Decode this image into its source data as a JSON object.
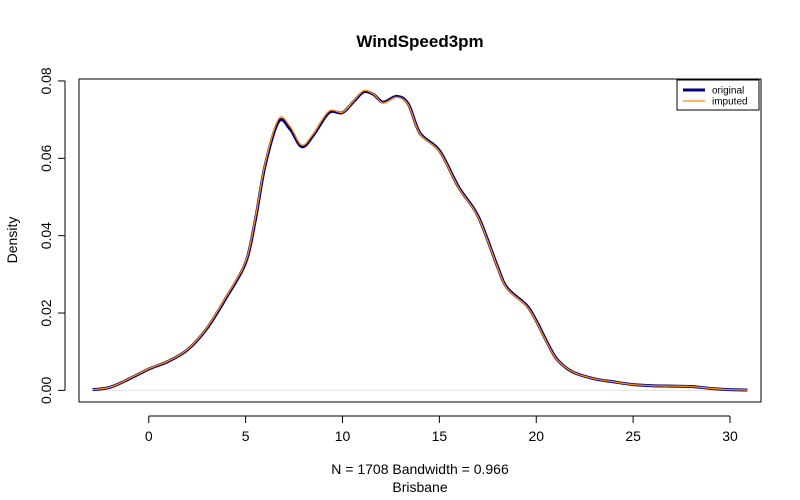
{
  "chart_data": {
    "type": "line",
    "title": "WindSpeed3pm",
    "xlabel": "N = 1708   Bandwidth = 0.966",
    "sublabel": "Brisbane",
    "ylabel": "Density",
    "xlim": [
      -3.6,
      31.6
    ],
    "ylim": [
      -0.003,
      0.0805
    ],
    "x_ticks": [
      0,
      5,
      10,
      15,
      20,
      25,
      30
    ],
    "x_tick_labels": [
      "0",
      "5",
      "10",
      "15",
      "20",
      "25",
      "30"
    ],
    "y_ticks": [
      0.0,
      0.02,
      0.04,
      0.06,
      0.08
    ],
    "y_tick_labels": [
      "0.00",
      "0.02",
      "0.04",
      "0.06",
      "0.08"
    ],
    "legend_position": "top-right",
    "grid": false,
    "series": [
      {
        "name": "original",
        "color": "#000080",
        "x": [
          -2.9,
          -2,
          -1,
          0,
          1,
          2,
          3,
          4,
          5,
          5.5,
          6,
          6.7,
          7.3,
          7.9,
          8.5,
          9.3,
          10,
          10.6,
          11.1,
          11.6,
          12.1,
          12.8,
          13.4,
          14,
          15,
          16,
          17,
          18,
          18.5,
          19.5,
          20,
          20.5,
          21,
          21.5,
          22,
          23,
          24,
          25,
          26,
          27,
          28,
          29,
          30,
          30.9
        ],
        "y": [
          0.0002,
          0.0008,
          0.003,
          0.0055,
          0.0075,
          0.0105,
          0.016,
          0.024,
          0.033,
          0.044,
          0.058,
          0.0695,
          0.0675,
          0.063,
          0.066,
          0.0718,
          0.0718,
          0.0748,
          0.0772,
          0.0765,
          0.0745,
          0.076,
          0.074,
          0.0665,
          0.062,
          0.0525,
          0.045,
          0.032,
          0.0265,
          0.022,
          0.018,
          0.013,
          0.0085,
          0.006,
          0.0045,
          0.003,
          0.0022,
          0.0015,
          0.0012,
          0.0011,
          0.001,
          0.0005,
          0.0002,
          0.0001
        ]
      },
      {
        "name": "imputed",
        "color": "#ff8c00",
        "x": [
          -2.9,
          -2,
          -1,
          0,
          1,
          2,
          3,
          4,
          5,
          5.5,
          6,
          6.7,
          7.3,
          7.9,
          8.5,
          9.3,
          10,
          10.6,
          11.1,
          11.6,
          12.1,
          12.8,
          13.4,
          14,
          15,
          16,
          17,
          18,
          18.5,
          19.5,
          20,
          20.5,
          21,
          21.5,
          22,
          23,
          24,
          25,
          26,
          27,
          28,
          29,
          30,
          30.9
        ],
        "y": [
          0.0002,
          0.0008,
          0.0031,
          0.0056,
          0.0076,
          0.0106,
          0.0162,
          0.0243,
          0.0333,
          0.0445,
          0.0585,
          0.0702,
          0.0682,
          0.0634,
          0.0664,
          0.0722,
          0.0719,
          0.075,
          0.0775,
          0.0766,
          0.0743,
          0.0758,
          0.0738,
          0.0663,
          0.0618,
          0.0523,
          0.0448,
          0.0318,
          0.0263,
          0.0218,
          0.0178,
          0.0128,
          0.0084,
          0.006,
          0.0045,
          0.003,
          0.0022,
          0.0015,
          0.0012,
          0.0011,
          0.001,
          0.0005,
          0.0002,
          0.0001
        ]
      }
    ]
  }
}
